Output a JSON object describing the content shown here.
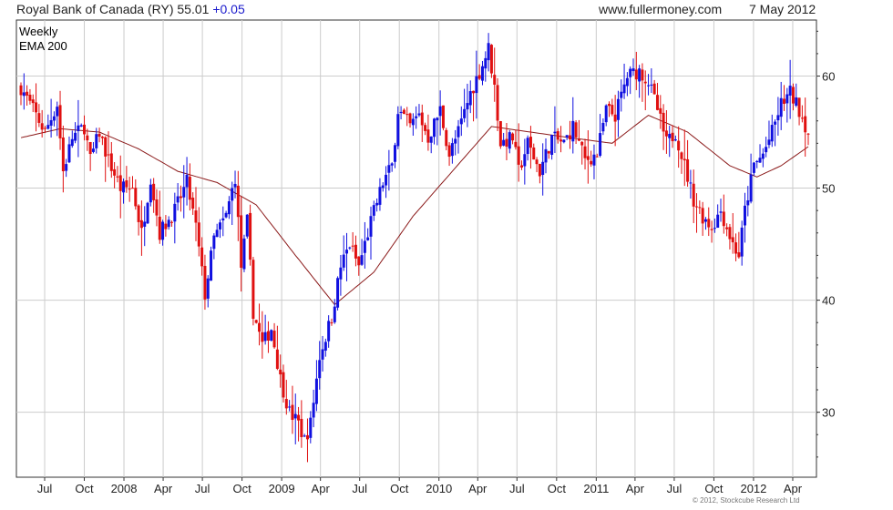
{
  "header": {
    "instrument": "Royal Bank of Canada (RY)",
    "price": "55.01",
    "change": "+0.05",
    "site": "www.fullermoney.com",
    "date": "7 May 2012"
  },
  "copyright": "© 2012, Stockcube Research Ltd",
  "colors": {
    "up": "#1010e0",
    "down": "#e01010",
    "ema": "#8b1a1a",
    "grid": "#cccccc",
    "axis": "#333333",
    "change_text": "#1a1acc",
    "legend_weekly": "#1a1acc",
    "legend_ema": "#8b1a1a"
  },
  "chart_data": {
    "type": "candlestick-ohlc",
    "interval": "weekly",
    "title": "Royal Bank of Canada (RY)",
    "legend": [
      {
        "name": "Weekly",
        "color": "#1a1acc"
      },
      {
        "name": "EMA 200",
        "color": "#8b1a1a"
      }
    ],
    "legend_position": "top-left",
    "y_axis_side": "right",
    "ylim": [
      24.2,
      65
    ],
    "y_ticks": [
      30,
      40,
      50,
      60
    ],
    "grid": true,
    "x_ticks": [
      {
        "label": "Jul",
        "date": "2007-07-01"
      },
      {
        "label": "Oct",
        "date": "2007-10-01"
      },
      {
        "label": "2008",
        "date": "2008-01-01"
      },
      {
        "label": "Apr",
        "date": "2008-04-01"
      },
      {
        "label": "Jul",
        "date": "2008-07-01"
      },
      {
        "label": "Oct",
        "date": "2008-10-01"
      },
      {
        "label": "2009",
        "date": "2009-01-01"
      },
      {
        "label": "Apr",
        "date": "2009-04-01"
      },
      {
        "label": "Jul",
        "date": "2009-07-01"
      },
      {
        "label": "Oct",
        "date": "2009-10-01"
      },
      {
        "label": "2010",
        "date": "2010-01-01"
      },
      {
        "label": "Apr",
        "date": "2010-04-01"
      },
      {
        "label": "Jul",
        "date": "2010-07-01"
      },
      {
        "label": "Oct",
        "date": "2010-10-01"
      },
      {
        "label": "2011",
        "date": "2011-01-01"
      },
      {
        "label": "Apr",
        "date": "2011-04-01"
      },
      {
        "label": "Jul",
        "date": "2011-07-01"
      },
      {
        "label": "Oct",
        "date": "2011-10-01"
      },
      {
        "label": "2012",
        "date": "2012-01-01"
      },
      {
        "label": "Apr",
        "date": "2012-04-01"
      }
    ],
    "start_date": "2007-05-07",
    "end_date": "2012-05-07",
    "close_path": [
      [
        "2007-05-07",
        59.0
      ],
      [
        "2007-06-04",
        57.0
      ],
      [
        "2007-07-02",
        55.0
      ],
      [
        "2007-07-30",
        57.5
      ],
      [
        "2007-08-13",
        51.5
      ],
      [
        "2007-09-03",
        54.5
      ],
      [
        "2007-10-01",
        55.5
      ],
      [
        "2007-10-15",
        52.5
      ],
      [
        "2007-11-05",
        55.0
      ],
      [
        "2007-11-26",
        52.5
      ],
      [
        "2007-12-24",
        50.0
      ],
      [
        "2008-01-21",
        50.0
      ],
      [
        "2008-02-11",
        46.0
      ],
      [
        "2008-03-03",
        51.0
      ],
      [
        "2008-03-24",
        46.0
      ],
      [
        "2008-04-28",
        48.0
      ],
      [
        "2008-05-26",
        50.5
      ],
      [
        "2008-06-16",
        46.5
      ],
      [
        "2008-07-07",
        40.5
      ],
      [
        "2008-07-28",
        45.5
      ],
      [
        "2008-08-25",
        47.5
      ],
      [
        "2008-09-15",
        51.0
      ],
      [
        "2008-09-29",
        43.0
      ],
      [
        "2008-10-13",
        47.0
      ],
      [
        "2008-10-27",
        39.0
      ],
      [
        "2008-11-17",
        36.0
      ],
      [
        "2008-12-08",
        37.5
      ],
      [
        "2008-12-29",
        33.0
      ],
      [
        "2009-01-19",
        30.0
      ],
      [
        "2009-02-09",
        29.0
      ],
      [
        "2009-02-23",
        27.5
      ],
      [
        "2009-03-09",
        29.0
      ],
      [
        "2009-03-30",
        35.0
      ],
      [
        "2009-04-27",
        38.5
      ],
      [
        "2009-05-18",
        43.0
      ],
      [
        "2009-06-08",
        45.0
      ],
      [
        "2009-06-29",
        43.0
      ],
      [
        "2009-07-27",
        47.0
      ],
      [
        "2009-08-24",
        50.5
      ],
      [
        "2009-09-14",
        52.0
      ],
      [
        "2009-09-28",
        57.0
      ],
      [
        "2009-10-26",
        55.5
      ],
      [
        "2009-11-16",
        56.5
      ],
      [
        "2009-12-07",
        54.5
      ],
      [
        "2010-01-04",
        57.0
      ],
      [
        "2010-01-25",
        53.0
      ],
      [
        "2010-02-15",
        55.0
      ],
      [
        "2010-03-15",
        58.5
      ],
      [
        "2010-04-12",
        61.0
      ],
      [
        "2010-04-26",
        62.5
      ],
      [
        "2010-05-10",
        59.0
      ],
      [
        "2010-05-24",
        54.0
      ],
      [
        "2010-06-21",
        54.5
      ],
      [
        "2010-07-05",
        51.5
      ],
      [
        "2010-07-26",
        54.0
      ],
      [
        "2010-08-23",
        51.5
      ],
      [
        "2010-09-20",
        54.5
      ],
      [
        "2010-10-18",
        54.0
      ],
      [
        "2010-11-08",
        55.5
      ],
      [
        "2010-12-06",
        52.5
      ],
      [
        "2011-01-03",
        53.0
      ],
      [
        "2011-01-24",
        57.0
      ],
      [
        "2011-02-14",
        56.5
      ],
      [
        "2011-03-14",
        60.0
      ],
      [
        "2011-04-11",
        60.5
      ],
      [
        "2011-05-02",
        59.5
      ],
      [
        "2011-05-23",
        57.0
      ],
      [
        "2011-06-13",
        54.0
      ],
      [
        "2011-07-04",
        55.0
      ],
      [
        "2011-07-25",
        52.0
      ],
      [
        "2011-08-15",
        49.0
      ],
      [
        "2011-09-05",
        47.5
      ],
      [
        "2011-09-26",
        46.5
      ],
      [
        "2011-10-17",
        48.0
      ],
      [
        "2011-11-14",
        45.0
      ],
      [
        "2011-11-28",
        44.0
      ],
      [
        "2011-12-12",
        48.0
      ],
      [
        "2012-01-02",
        52.0
      ],
      [
        "2012-01-23",
        53.0
      ],
      [
        "2012-02-13",
        55.0
      ],
      [
        "2012-03-05",
        57.5
      ],
      [
        "2012-03-26",
        58.5
      ],
      [
        "2012-04-16",
        57.0
      ],
      [
        "2012-05-07",
        55.01
      ]
    ],
    "ema200_path": [
      [
        "2007-05-07",
        54.5
      ],
      [
        "2007-08-06",
        55.3
      ],
      [
        "2007-11-05",
        55.0
      ],
      [
        "2008-02-04",
        53.5
      ],
      [
        "2008-05-05",
        51.5
      ],
      [
        "2008-08-04",
        50.5
      ],
      [
        "2008-11-03",
        48.5
      ],
      [
        "2009-02-02",
        44.0
      ],
      [
        "2009-05-04",
        39.6
      ],
      [
        "2009-08-03",
        42.5
      ],
      [
        "2009-11-02",
        47.5
      ],
      [
        "2010-02-01",
        51.5
      ],
      [
        "2010-05-03",
        55.5
      ],
      [
        "2010-08-02",
        55.0
      ],
      [
        "2010-11-01",
        54.5
      ],
      [
        "2011-02-07",
        54.0
      ],
      [
        "2011-05-02",
        56.5
      ],
      [
        "2011-08-01",
        55.0
      ],
      [
        "2011-11-07",
        52.0
      ],
      [
        "2012-01-09",
        51.0
      ],
      [
        "2012-03-05",
        52.0
      ],
      [
        "2012-05-07",
        53.7
      ]
    ]
  }
}
